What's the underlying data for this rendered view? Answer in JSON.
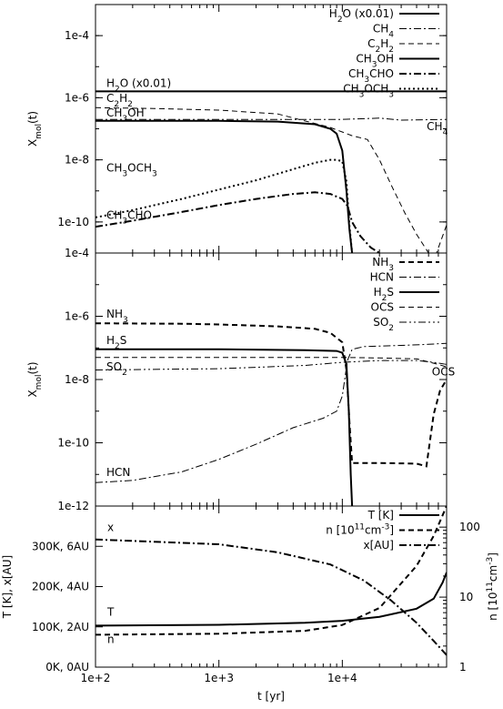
{
  "chart_data": [
    {
      "type": "line",
      "xscale": "log",
      "yscale": "log",
      "xlim": [
        100,
        70000
      ],
      "ylim": [
        1e-11,
        0.001
      ],
      "ylabel_main": "X",
      "ylabel_sub": "mol",
      "ylabel_suffix": "(t)",
      "yticks": [
        {
          "value": 0.0001,
          "label": "1e-4"
        },
        {
          "value": 1e-06,
          "label": "1e-6"
        },
        {
          "value": 1e-08,
          "label": "1e-8"
        },
        {
          "value": 1e-10,
          "label": "1e-10"
        }
      ],
      "series": [
        {
          "name_main": "H",
          "name_sub": "2",
          "name_tail": "O (x0.01)",
          "style": "solid",
          "width": 2,
          "points": [
            [
              100,
              1.6e-06
            ],
            [
              1000,
              1.6e-06
            ],
            [
              10000,
              1.6e-06
            ],
            [
              70000,
              1.6e-06
            ]
          ]
        },
        {
          "name_main": "CH",
          "name_sub": "4",
          "name_tail": "",
          "style": "dashdot",
          "width": 1,
          "points": [
            [
              100,
              2e-07
            ],
            [
              1000,
              2e-07
            ],
            [
              10000,
              2e-07
            ],
            [
              20000,
              2.2e-07
            ],
            [
              30000,
              1.9e-07
            ],
            [
              70000,
              2e-07
            ]
          ]
        },
        {
          "name_main": "C",
          "name_sub": "2",
          "name_tail": "H",
          "name_sub2": "2",
          "style": "dashed",
          "width": 1,
          "points": [
            [
              100,
              4.8e-07
            ],
            [
              300,
              4.5e-07
            ],
            [
              1000,
              4e-07
            ],
            [
              3000,
              3e-07
            ],
            [
              8000,
              1.1e-07
            ],
            [
              12000,
              6e-08
            ],
            [
              16000,
              4.5e-08
            ],
            [
              20000,
              1e-08
            ],
            [
              25000,
              1.5e-09
            ],
            [
              32000,
              2e-10
            ],
            [
              40000,
              4e-11
            ],
            [
              50000,
              1e-11
            ],
            [
              58000,
              1e-11
            ],
            [
              70000,
              8e-11
            ]
          ]
        },
        {
          "name_main": "CH",
          "name_sub": "3",
          "name_tail": "OH",
          "style": "solid",
          "width": 2,
          "points": [
            [
              100,
              1.8e-07
            ],
            [
              1000,
              1.8e-07
            ],
            [
              3000,
              1.7e-07
            ],
            [
              6000,
              1.4e-07
            ],
            [
              8000,
              1e-07
            ],
            [
              9000,
              7e-08
            ],
            [
              10000,
              2e-08
            ],
            [
              10800,
              1e-09
            ],
            [
              11400,
              6e-11
            ],
            [
              12000,
              1e-11
            ]
          ]
        },
        {
          "name_main": "CH",
          "name_sub": "3",
          "name_tail": "CHO",
          "style": "dashdot",
          "width": 2,
          "points": [
            [
              100,
              7e-11
            ],
            [
              200,
              1.1e-10
            ],
            [
              500,
              2.1e-10
            ],
            [
              1000,
              3.5e-10
            ],
            [
              2000,
              5.5e-10
            ],
            [
              4000,
              8e-10
            ],
            [
              6000,
              9e-10
            ],
            [
              8000,
              8e-10
            ],
            [
              10000,
              5.5e-10
            ],
            [
              11000,
              3.3e-10
            ],
            [
              12000,
              1e-10
            ],
            [
              14000,
              3.5e-11
            ],
            [
              17000,
              1.5e-11
            ],
            [
              20000,
              1e-11
            ]
          ]
        },
        {
          "name_main": "CH",
          "name_sub": "3",
          "name_tail": "OCH",
          "name_sub2": "3",
          "style": "dotted",
          "width": 2,
          "points": [
            [
              100,
              1.4e-10
            ],
            [
              200,
              2.4e-10
            ],
            [
              500,
              5.5e-10
            ],
            [
              1000,
              1.1e-09
            ],
            [
              2000,
              2.2e-09
            ],
            [
              4000,
              5e-09
            ],
            [
              6000,
              8e-09
            ],
            [
              8000,
              1e-08
            ],
            [
              9000,
              1e-08
            ],
            [
              10000,
              9e-09
            ],
            [
              10800,
              2e-09
            ],
            [
              11400,
              8e-11
            ],
            [
              12000,
              1e-11
            ]
          ]
        }
      ],
      "annotations": [
        {
          "main": "H",
          "sub": "2",
          "tail": "O (x0.01)",
          "x": 100,
          "y": 1.6e-06
        },
        {
          "main": "C",
          "sub": "2",
          "tail": "H",
          "sub2": "2",
          "x": 100,
          "y": 5.2e-07
        },
        {
          "main": "CH",
          "sub": "3",
          "tail": "OH",
          "x": 100,
          "y": 1.8e-07
        },
        {
          "main": "CH",
          "sub": "3",
          "tail": "OCH",
          "sub2": "3",
          "x": 100,
          "y": 3e-09
        },
        {
          "main": "CH",
          "sub": "3",
          "tail": "CHO",
          "x": 100,
          "y": 9e-11
        },
        {
          "main": "CH",
          "sub": "4",
          "tail": "",
          "x": 20000,
          "y": 2e-07
        }
      ]
    },
    {
      "type": "line",
      "xscale": "log",
      "yscale": "log",
      "xlim": [
        100,
        70000
      ],
      "ylim": [
        1e-12,
        0.0001
      ],
      "ylabel_main": "X",
      "ylabel_sub": "mol",
      "ylabel_suffix": "(t)",
      "yticks": [
        {
          "value": 0.0001,
          "label": "1e-4"
        },
        {
          "value": 1e-06,
          "label": "1e-6"
        },
        {
          "value": 1e-08,
          "label": "1e-8"
        },
        {
          "value": 1e-10,
          "label": "1e-10"
        },
        {
          "value": 1e-12,
          "label": "1e-12"
        }
      ],
      "series": [
        {
          "name_main": "NH",
          "name_sub": "3",
          "name_tail": "",
          "style": "dashed",
          "width": 2,
          "points": [
            [
              100,
              6e-07
            ],
            [
              500,
              5.8e-07
            ],
            [
              1000,
              5.5e-07
            ],
            [
              3000,
              4.8e-07
            ],
            [
              6000,
              4e-07
            ],
            [
              8000,
              3e-07
            ],
            [
              10000,
              1.5e-07
            ],
            [
              10800,
              2e-08
            ],
            [
              11400,
              5e-10
            ],
            [
              12000,
              2.3e-11
            ],
            [
              20000,
              2.3e-11
            ],
            [
              40000,
              2.2e-11
            ],
            [
              48000,
              1.8e-11
            ],
            [
              55000,
              8e-10
            ],
            [
              62000,
              4.5e-09
            ],
            [
              70000,
              1e-08
            ]
          ]
        },
        {
          "name_main": "HCN",
          "name_sub": "",
          "name_tail": "",
          "style": "dashdot",
          "width": 1,
          "points": [
            [
              100,
              5.5e-12
            ],
            [
              200,
              6.5e-12
            ],
            [
              500,
              1.2e-11
            ],
            [
              1000,
              3e-11
            ],
            [
              2000,
              9e-11
            ],
            [
              4000,
              3e-10
            ],
            [
              7000,
              6e-10
            ],
            [
              9000,
              1e-09
            ],
            [
              10000,
              3e-09
            ],
            [
              11000,
              4e-08
            ],
            [
              12000,
              9e-08
            ],
            [
              15000,
              1.1e-07
            ],
            [
              30000,
              1.2e-07
            ],
            [
              50000,
              1.3e-07
            ],
            [
              70000,
              1.4e-07
            ]
          ]
        },
        {
          "name_main": "H",
          "name_sub": "2",
          "name_tail": "S",
          "style": "solid",
          "width": 2,
          "points": [
            [
              100,
              9e-08
            ],
            [
              1000,
              9e-08
            ],
            [
              5000,
              8.5e-08
            ],
            [
              9000,
              8e-08
            ],
            [
              10000,
              7e-08
            ],
            [
              10800,
              3e-08
            ],
            [
              11300,
              1e-09
            ],
            [
              11700,
              1e-11
            ],
            [
              12000,
              1e-12
            ]
          ]
        },
        {
          "name_main": "OCS",
          "name_sub": "",
          "name_tail": "",
          "style": "dashed",
          "width": 1,
          "points": [
            [
              100,
              5e-08
            ],
            [
              1000,
              5e-08
            ],
            [
              5000,
              5e-08
            ],
            [
              10000,
              5e-08
            ],
            [
              20000,
              4.8e-08
            ],
            [
              40000,
              4.5e-08
            ],
            [
              60000,
              3e-08
            ],
            [
              70000,
              2.5e-08
            ]
          ]
        },
        {
          "name_main": "SO",
          "name_sub": "2",
          "name_tail": "",
          "style": "dashdotdot",
          "width": 1,
          "points": [
            [
              100,
              2e-08
            ],
            [
              1000,
              2.2e-08
            ],
            [
              5000,
              2.8e-08
            ],
            [
              10000,
              3.5e-08
            ],
            [
              20000,
              4e-08
            ],
            [
              40000,
              4e-08
            ],
            [
              55000,
              3.5e-08
            ],
            [
              70000,
              3e-08
            ]
          ]
        }
      ],
      "annotations": [
        {
          "main": "NH",
          "sub": "3",
          "tail": "",
          "x": 100,
          "y": 6.5e-07
        },
        {
          "main": "H",
          "sub": "2",
          "tail": "S",
          "x": 100,
          "y": 9.5e-08
        },
        {
          "main": "SO",
          "sub": "2",
          "tail": "",
          "x": 100,
          "y": 1.4e-08
        },
        {
          "main": "HCN",
          "sub": "",
          "tail": "",
          "x": 100,
          "y": 6.5e-12
        },
        {
          "main": "OCS",
          "sub": "",
          "tail": "",
          "x": 22000,
          "y": 3e-08
        }
      ]
    },
    {
      "type": "line",
      "xscale": "log",
      "xlim": [
        100,
        70000
      ],
      "xlabel": "t [yr]",
      "xticks": [
        {
          "value": 100,
          "base": "1e+2"
        },
        {
          "value": 1000,
          "base": "1e+3"
        },
        {
          "value": 10000,
          "base": "1e+4"
        }
      ],
      "ylim": [
        0,
        400
      ],
      "yticks": [
        {
          "value": 0,
          "label": "0K,  0AU"
        },
        {
          "value": 100,
          "label": "100K,  2AU"
        },
        {
          "value": 200,
          "label": "200K,  4AU"
        },
        {
          "value": 300,
          "label": "300K,  6AU"
        }
      ],
      "ylabel": "T [K], x[AU]",
      "y2scale": "log",
      "y2lim": [
        1,
        200
      ],
      "y2ticks": [
        {
          "value": 1,
          "label": "1"
        },
        {
          "value": 10,
          "label": "10"
        },
        {
          "value": 100,
          "label": "100"
        }
      ],
      "y2label_main": "n [10",
      "y2label_sup": "11",
      "y2label_tail": "cm",
      "y2label_sup2": "-3",
      "y2label_end": "]",
      "series": [
        {
          "name": "T [K]",
          "axis": "y",
          "style": "solid",
          "width": 2,
          "points": [
            [
              100,
              103
            ],
            [
              1000,
              105
            ],
            [
              5000,
              110
            ],
            [
              10000,
              115
            ],
            [
              20000,
              125
            ],
            [
              40000,
              145
            ],
            [
              55000,
              170
            ],
            [
              65000,
              210
            ],
            [
              70000,
              235
            ]
          ]
        },
        {
          "name_main": "n [10",
          "name_sup": "11",
          "name_tail": "cm",
          "name_sup2": "-3",
          "name_end": "]",
          "axis": "y2",
          "style": "dashed",
          "width": 2,
          "points": [
            [
              100,
              2.9
            ],
            [
              1000,
              3.0
            ],
            [
              5000,
              3.3
            ],
            [
              10000,
              4.0
            ],
            [
              20000,
              7.0
            ],
            [
              40000,
              28
            ],
            [
              55000,
              75
            ],
            [
              70000,
              200
            ]
          ]
        },
        {
          "name": "x[AU]",
          "axis": "y",
          "style": "dashdot",
          "width": 2,
          "points": [
            [
              100,
              317
            ],
            [
              1000,
              305
            ],
            [
              3000,
              285
            ],
            [
              8000,
              255
            ],
            [
              15000,
              215
            ],
            [
              25000,
              165
            ],
            [
              40000,
              110
            ],
            [
              55000,
              65
            ],
            [
              70000,
              30
            ]
          ]
        }
      ],
      "annotations": [
        {
          "text": "x",
          "x": 100,
          "y": 338
        },
        {
          "text": "T",
          "x": 100,
          "y": 128
        },
        {
          "text": "n",
          "x": 100,
          "y": 60
        }
      ]
    }
  ]
}
